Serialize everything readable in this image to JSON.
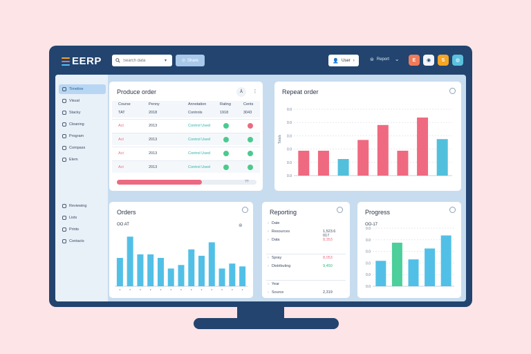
{
  "app": {
    "logo": "EERP",
    "logo_colors": [
      "#f5a623",
      "#ec6a80",
      "#4fc3f7"
    ]
  },
  "topbar": {
    "search_placeholder": "Search data",
    "search_button": "Share",
    "user_button": "User",
    "report_menu": "Report",
    "app_icons": [
      {
        "name": "app-icon-e",
        "label": "E",
        "color": "#f07b5a"
      },
      {
        "name": "app-icon-user",
        "label": "◉",
        "color": "#f2f5fa"
      },
      {
        "name": "app-icon-s",
        "label": "S",
        "color": "#f5a623"
      },
      {
        "name": "app-icon-globe",
        "label": "◍",
        "color": "#5bc0de"
      }
    ]
  },
  "sidebar": {
    "items": [
      {
        "label": "Timeline",
        "active": true
      },
      {
        "label": "Visual"
      },
      {
        "label": "Stacky"
      },
      {
        "label": "Cleaning"
      },
      {
        "label": "Program"
      },
      {
        "label": "Compass"
      },
      {
        "label": "Elem"
      }
    ],
    "bottom_items": [
      {
        "label": "Reviewing"
      },
      {
        "label": "Lists"
      },
      {
        "label": "Prints"
      },
      {
        "label": "Contacts"
      }
    ]
  },
  "product_order": {
    "title": "Produce order",
    "headers": [
      "Course",
      "Penny",
      "Annotation",
      "Rating",
      "Cents"
    ],
    "subheader": [
      "TAT",
      "2018",
      "Controls",
      "1918",
      "3043"
    ],
    "rows": [
      {
        "name": "Act",
        "year": "2013",
        "status": "Control Used",
        "dot1": "#4cc98f",
        "dot2": "#ec6a80"
      },
      {
        "name": "Act",
        "year": "2013",
        "status": "Control Used",
        "dot1": "#4cc98f",
        "dot2": "#4cc98f"
      },
      {
        "name": "Act",
        "year": "2013",
        "status": "Control Used",
        "dot1": "#4cc98f",
        "dot2": "#4cc98f"
      },
      {
        "name": "Act",
        "year": "2013",
        "status": "Control Used",
        "dot1": "#4cc98f",
        "dot2": "#4cc98f"
      }
    ],
    "progress": 0.61,
    "progress_label": "??"
  },
  "repeat_order": {
    "title": "Repeat order",
    "ylabel": "Totals",
    "y_ticks": [
      "0.0",
      "0.0",
      "0.0",
      "0.0",
      "0.0",
      "0.0"
    ],
    "bars": [
      {
        "value": 30,
        "color": "#ef6a80"
      },
      {
        "value": 30,
        "color": "#ef6a80"
      },
      {
        "value": 20,
        "color": "#52c0dc"
      },
      {
        "value": 43,
        "color": "#ef6a80"
      },
      {
        "value": 61,
        "color": "#ef6a80"
      },
      {
        "value": 30,
        "color": "#ef6a80"
      },
      {
        "value": 70,
        "color": "#ef6a80"
      },
      {
        "value": 44,
        "color": "#52c0dc"
      }
    ],
    "ymax": 80
  },
  "orders": {
    "title": "Orders",
    "subtitle": "OO AT",
    "values": [
      40,
      70,
      45,
      45,
      40,
      25,
      30,
      52,
      43,
      62,
      25,
      32,
      28
    ],
    "ymax": 80,
    "color": "#52c0e6"
  },
  "reporting": {
    "title": "Reporting",
    "groups": [
      {
        "rows": [
          {
            "label": "Date",
            "value": "",
            "color": "#3b4a60"
          },
          {
            "label": "Resources",
            "value": "1,523.6 017",
            "color": "#3b4a60"
          },
          {
            "label": "Data",
            "value": "8,353",
            "color": "#ec6a80"
          }
        ]
      },
      {
        "rows": [
          {
            "label": "Spray",
            "value": "8,053",
            "color": "#ec6a80"
          },
          {
            "label": "Distributing",
            "value": "9,450",
            "color": "#2ab57d"
          }
        ]
      },
      {
        "rows": [
          {
            "label": "Year",
            "value": "",
            "color": "#3b4a60"
          },
          {
            "label": "Source",
            "value": "2,319",
            "color": "#3b4a60"
          }
        ]
      }
    ]
  },
  "progress_chart": {
    "title": "Progress",
    "subtitle": "OO-17",
    "y_ticks": [
      "0.0",
      "0.0",
      "0.0",
      "0.0",
      "0.0",
      "0.0"
    ],
    "bars": [
      {
        "value": 35,
        "color": "#52c0e6"
      },
      {
        "value": 60,
        "color": "#4ccf9a"
      },
      {
        "value": 37,
        "color": "#52c0e6"
      },
      {
        "value": 52,
        "color": "#52c0e6"
      },
      {
        "value": 70,
        "color": "#52c0e6"
      }
    ],
    "ymax": 80
  }
}
